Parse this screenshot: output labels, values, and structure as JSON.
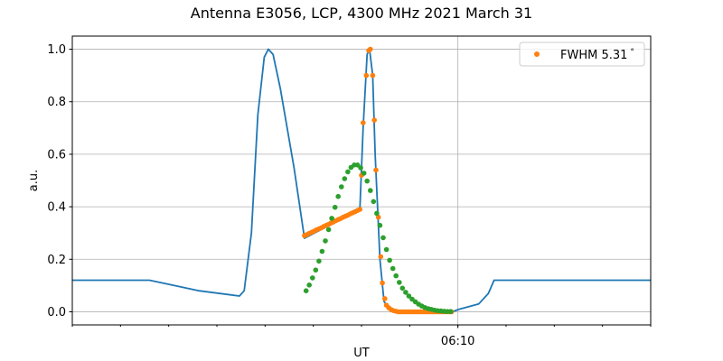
{
  "chart_data": {
    "type": "line",
    "title": "Antenna E3056, LCP, 4300 MHz 2021 March 31",
    "xlabel": "UT",
    "ylabel": "a.u.",
    "xlim": [
      "06:02:00",
      "06:14:00"
    ],
    "ylim": [
      -0.05,
      1.05
    ],
    "x_major_ticks": [
      {
        "value": "06:10:00",
        "label": "06:10"
      }
    ],
    "x_minor_ticks": [
      "06:02:00",
      "06:03:00",
      "06:04:00",
      "06:05:00",
      "06:06:00",
      "06:07:00",
      "06:08:00",
      "06:09:00",
      "06:10:00",
      "06:11:00",
      "06:12:00",
      "06:13:00",
      "06:14:00"
    ],
    "y_ticks": [
      0.0,
      0.2,
      0.4,
      0.6,
      0.8,
      1.0
    ],
    "y_tick_labels": [
      "0.0",
      "0.2",
      "0.4",
      "0.6",
      "0.8",
      "1.0"
    ],
    "grid": true,
    "legend_placement": "upper-right",
    "series": [
      {
        "kind": "line",
        "color": "#1f77b4",
        "x": [
          "06:02:00",
          "06:03:36",
          "06:03:52",
          "06:04:38",
          "06:05:28",
          "06:05:34",
          "06:05:43",
          "06:05:51",
          "06:05:59",
          "06:06:04",
          "06:06:10",
          "06:06:19",
          "06:06:36",
          "06:06:49",
          "06:07:58",
          "06:08:02",
          "06:08:07",
          "06:08:10",
          "06:08:14",
          "06:08:17",
          "06:08:23",
          "06:08:28",
          "06:08:34",
          "06:08:45",
          "06:09:53",
          "06:10:00",
          "06:10:26",
          "06:10:38",
          "06:10:45",
          "06:14:00"
        ],
        "y": [
          0.12,
          0.12,
          0.11,
          0.08,
          0.06,
          0.08,
          0.3,
          0.75,
          0.97,
          1.0,
          0.98,
          0.85,
          0.55,
          0.28,
          0.39,
          0.7,
          0.98,
          1.0,
          0.9,
          0.6,
          0.2,
          0.04,
          0.01,
          0.0,
          0.0,
          0.008,
          0.03,
          0.07,
          0.12,
          0.12
        ]
      },
      {
        "kind": "scatter",
        "name": "FWHM 5.31$^\\circ$",
        "legend_label": "FWHM 5.31",
        "legend_sup": "°",
        "color": "#ff7f0e",
        "x": [
          "06:06:49",
          "06:06:52",
          "06:06:55",
          "06:06:58",
          "06:07:01",
          "06:07:04",
          "06:07:07",
          "06:07:10",
          "06:07:13",
          "06:07:16",
          "06:07:19",
          "06:07:22",
          "06:07:25",
          "06:07:28",
          "06:07:31",
          "06:07:34",
          "06:07:37",
          "06:07:40",
          "06:07:43",
          "06:07:46",
          "06:07:49",
          "06:07:52",
          "06:07:55",
          "06:07:58",
          "06:08:00",
          "06:08:02",
          "06:08:06",
          "06:08:09",
          "06:08:11",
          "06:08:14",
          "06:08:16",
          "06:08:18",
          "06:08:21",
          "06:08:24",
          "06:08:26",
          "06:08:29",
          "06:08:31",
          "06:08:34",
          "06:08:37",
          "06:08:40",
          "06:08:43",
          "06:08:46",
          "06:08:49",
          "06:08:52",
          "06:08:55",
          "06:08:58",
          "06:09:01",
          "06:09:04",
          "06:09:07",
          "06:09:10",
          "06:09:13",
          "06:09:16",
          "06:09:19",
          "06:09:22",
          "06:09:25",
          "06:09:28",
          "06:09:31",
          "06:09:34",
          "06:09:37",
          "06:09:40",
          "06:09:43",
          "06:09:46",
          "06:09:49",
          "06:09:52"
        ],
        "y": [
          0.29,
          0.294,
          0.299,
          0.303,
          0.307,
          0.312,
          0.316,
          0.32,
          0.325,
          0.329,
          0.333,
          0.338,
          0.342,
          0.347,
          0.351,
          0.355,
          0.36,
          0.364,
          0.368,
          0.373,
          0.377,
          0.381,
          0.386,
          0.39,
          0.52,
          0.72,
          0.9,
          0.995,
          1.0,
          0.9,
          0.73,
          0.54,
          0.36,
          0.21,
          0.11,
          0.05,
          0.025,
          0.015,
          0.008,
          0.004,
          0.002,
          0,
          0,
          0,
          0,
          0,
          0,
          0,
          0,
          0,
          0,
          0,
          0,
          0,
          0,
          0,
          0,
          0,
          0,
          0,
          0,
          0,
          0,
          0
        ]
      },
      {
        "kind": "scatter",
        "color": "#2ca02c",
        "x": [
          "06:06:51",
          "06:06:55",
          "06:06:59",
          "06:07:03",
          "06:07:07",
          "06:07:11",
          "06:07:15",
          "06:07:19",
          "06:07:23",
          "06:07:27",
          "06:07:31",
          "06:07:35",
          "06:07:39",
          "06:07:43",
          "06:07:47",
          "06:07:51",
          "06:07:55",
          "06:07:59",
          "06:08:03",
          "06:08:07",
          "06:08:11",
          "06:08:15",
          "06:08:19",
          "06:08:23",
          "06:08:27",
          "06:08:31",
          "06:08:35",
          "06:08:39",
          "06:08:43",
          "06:08:47",
          "06:08:51",
          "06:08:55",
          "06:08:59",
          "06:09:03",
          "06:09:07",
          "06:09:11",
          "06:09:15",
          "06:09:19",
          "06:09:23",
          "06:09:27",
          "06:09:31",
          "06:09:35",
          "06:09:39",
          "06:09:43",
          "06:09:47",
          "06:09:51"
        ],
        "y": [
          0.08,
          0.102,
          0.129,
          0.159,
          0.193,
          0.23,
          0.27,
          0.313,
          0.356,
          0.398,
          0.439,
          0.476,
          0.507,
          0.533,
          0.55,
          0.559,
          0.559,
          0.548,
          0.528,
          0.498,
          0.462,
          0.42,
          0.375,
          0.329,
          0.282,
          0.237,
          0.196,
          0.165,
          0.137,
          0.112,
          0.09,
          0.074,
          0.06,
          0.048,
          0.038,
          0.029,
          0.022,
          0.016,
          0.012,
          0.009,
          0.006,
          0.004,
          0.003,
          0.002,
          0.001,
          0.001
        ]
      }
    ]
  }
}
